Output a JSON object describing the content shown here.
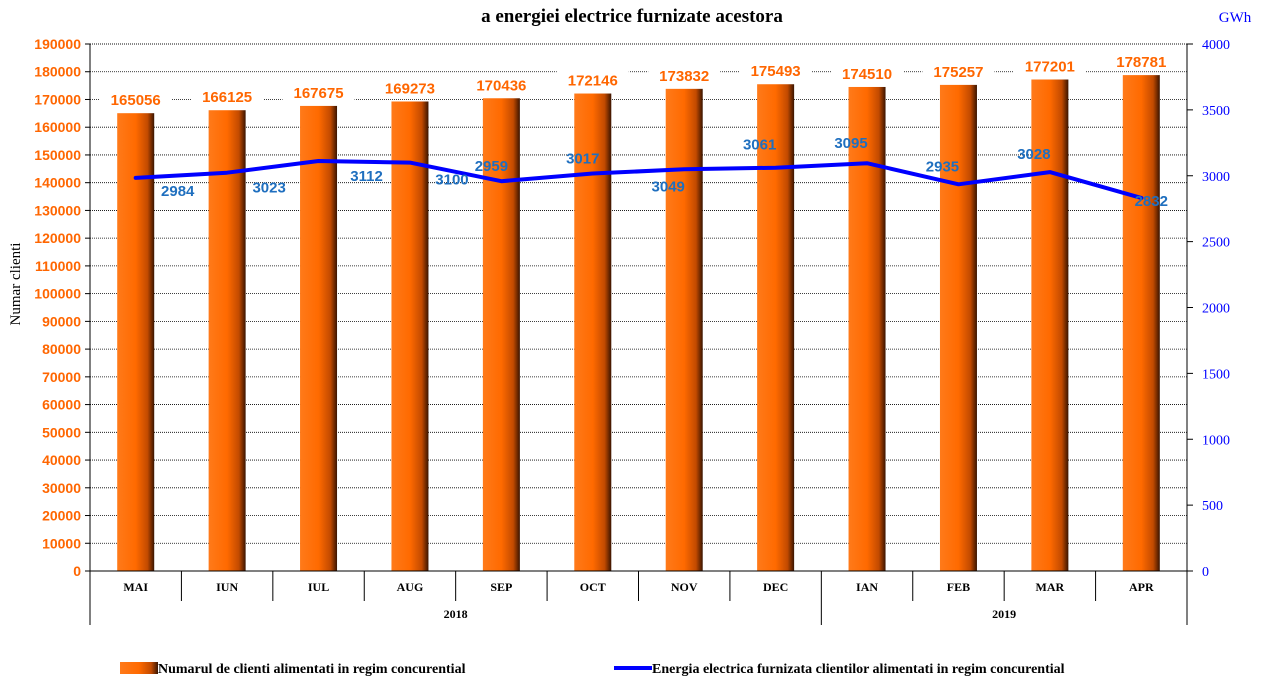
{
  "chart_data": {
    "type": "bar",
    "title": "a energiei electrice furnizate acestora",
    "categories": [
      "MAI",
      "IUN",
      "IUL",
      "AUG",
      "SEP",
      "OCT",
      "NOV",
      "DEC",
      "IAN",
      "FEB",
      "MAR",
      "APR"
    ],
    "year_groups": [
      {
        "label": "2018",
        "categories": 8
      },
      {
        "label": "2019",
        "categories": 4
      }
    ],
    "series": [
      {
        "name": "Numarul de clienti alimentati in regim concurential",
        "type": "bar",
        "axis": "left",
        "color": "#ff6a00",
        "values": [
          165056,
          166125,
          167675,
          169273,
          170436,
          172146,
          173832,
          175493,
          174510,
          175257,
          177201,
          178781
        ]
      },
      {
        "name": "Energia electrica furnizata clientilor alimentati in regim concurential",
        "type": "line",
        "axis": "right",
        "color": "#0000ff",
        "values": [
          2984,
          3023,
          3112,
          3100,
          2959,
          3017,
          3049,
          3061,
          3095,
          2935,
          3028,
          2832
        ]
      }
    ],
    "ylabel": "Numar clienti",
    "y2label": "GWh",
    "ylim": [
      0,
      190000
    ],
    "y2lim": [
      0,
      4000
    ],
    "yticks": [
      0,
      10000,
      20000,
      30000,
      40000,
      50000,
      60000,
      70000,
      80000,
      90000,
      100000,
      110000,
      120000,
      130000,
      140000,
      150000,
      160000,
      170000,
      180000,
      190000
    ],
    "y2ticks": [
      0,
      500,
      1000,
      1500,
      2000,
      2500,
      3000,
      3500,
      4000
    ],
    "grid": true,
    "legend_position": "bottom",
    "colors": {
      "left_axis_text": "#ff6600",
      "right_axis_text": "#0000ff",
      "bar_label": "#ff6600",
      "line_label": "#1f6fbf"
    }
  }
}
